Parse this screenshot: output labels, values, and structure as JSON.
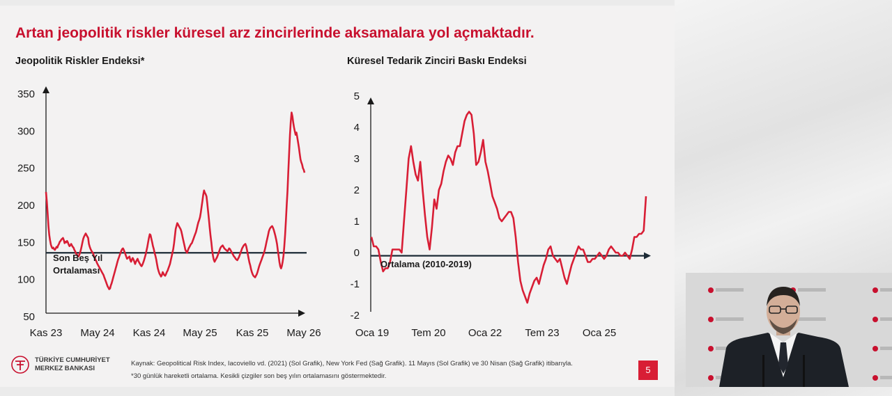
{
  "slide": {
    "title": "Artan jeopolitik riskler küresel arz zincirlerinde aksamalara yol açmaktadır.",
    "page_number": "5",
    "source_line1": "Kaynak: Geopolitical Risk Index, Iacoviello vd. (2021) (Sol Grafik), New York Fed (Sağ Grafik). 11 Mayıs (Sol Grafik) ve 30 Nisan (Sağ Grafik) itibarıyla.",
    "source_line2": "*30 günlük hareketli ortalama. Kesikli çizgiler son beş yılın ortalamasını göstermektedir.",
    "logo_line1": "TÜRKİYE CUMHURİYET",
    "logo_line2": "MERKEZ BANKASI",
    "logo_monogram": "TCMB",
    "accent_color": "#c8102e"
  },
  "chart_data": [
    {
      "type": "line",
      "title": "Jeopolitik Riskler Endeksi*",
      "ylim": [
        50,
        350
      ],
      "yticks": [
        "350",
        "300",
        "250",
        "200",
        "150",
        "100",
        "50"
      ],
      "xticks": [
        "Kas 23",
        "May 24",
        "Kas 24",
        "May 25",
        "Kas 25",
        "May 26"
      ],
      "reference_line": {
        "value": 136,
        "label_line1": "Son Beş Yıl",
        "label_line2": "Ortalaması"
      },
      "line_color": "#d81e35",
      "series": [
        {
          "x_range": [
            "Kas 23",
            "May 26"
          ],
          "values": [
            218,
            205,
            190,
            172,
            160,
            153,
            147,
            144,
            142,
            143,
            141,
            140,
            142,
            144,
            143,
            146,
            148,
            151,
            152,
            154,
            155,
            156,
            153,
            149,
            151,
            150,
            152,
            150,
            147,
            145,
            146,
            148,
            146,
            144,
            143,
            140,
            138,
            135,
            134,
            132,
            131,
            133,
            136,
            140,
            145,
            150,
            155,
            158,
            160,
            162,
            160,
            158,
            156,
            148,
            144,
            141,
            139,
            137,
            136,
            132,
            130,
            127,
            125,
            122,
            120,
            118,
            116,
            114,
            112,
            110,
            108,
            106,
            103,
            100,
            97,
            94,
            91,
            89,
            87,
            88,
            92,
            95,
            99,
            103,
            107,
            111,
            115,
            119,
            123,
            127,
            130,
            133,
            136,
            139,
            141,
            142,
            140,
            137,
            134,
            131,
            128,
            129,
            130,
            131,
            126,
            124,
            127,
            129,
            127,
            124,
            121,
            124,
            126,
            128,
            125,
            123,
            121,
            119,
            118,
            120,
            123,
            126,
            130,
            134,
            139,
            144,
            150,
            156,
            161,
            160,
            155,
            150,
            145,
            141,
            136,
            132,
            127,
            121,
            115,
            111,
            108,
            106,
            104,
            106,
            110,
            108,
            106,
            105,
            107,
            110,
            112,
            115,
            118,
            121,
            126,
            131,
            136,
            141,
            149,
            158,
            168,
            172,
            176,
            174,
            172,
            170,
            168,
            165,
            160,
            155,
            150,
            145,
            140,
            138,
            136,
            139,
            142,
            144,
            146,
            148,
            149,
            152,
            155,
            158,
            161,
            164,
            168,
            173,
            177,
            180,
            184,
            190,
            198,
            206,
            214,
            220,
            217,
            215,
            212,
            203,
            192,
            181,
            170,
            159,
            150,
            140,
            132,
            127,
            124,
            126,
            128,
            130,
            133,
            136,
            139,
            142,
            144,
            145,
            146,
            144,
            142,
            141,
            140,
            139,
            138,
            140,
            142,
            141,
            139,
            137,
            135,
            133,
            131,
            130,
            128,
            127,
            126,
            128,
            130,
            133,
            136,
            139,
            142,
            144,
            146,
            147,
            148,
            145,
            140,
            134,
            128,
            123,
            119,
            114,
            110,
            107,
            105,
            104,
            103,
            105,
            107,
            110,
            114,
            118,
            121,
            124,
            127,
            130,
            133,
            136,
            140,
            145,
            150,
            155,
            160,
            165,
            168,
            170,
            171,
            172,
            170,
            167,
            163,
            159,
            154,
            148,
            140,
            132,
            124,
            118,
            115,
            118,
            124,
            132,
            144,
            160,
            180,
            200,
            220,
            245,
            270,
            295,
            312,
            325,
            320,
            312,
            305,
            300,
            295,
            298,
            292,
            285,
            278,
            270,
            262,
            258,
            255,
            250,
            248,
            244
          ]
        }
      ]
    },
    {
      "type": "line",
      "title": "Küresel Tedarik Zinciri Baskı Endeksi",
      "ylim": [
        -2,
        5
      ],
      "yticks": [
        "5",
        "4",
        "3",
        "2",
        "1",
        "0",
        "-1",
        "-2"
      ],
      "xticks": [
        "Oca 19",
        "Tem 20",
        "Oca 22",
        "Tem 23",
        "Oca 25"
      ],
      "reference_line": {
        "value": -0.1,
        "label": "Ortalama (2010-2019)"
      },
      "line_color": "#d81e35",
      "series": [
        {
          "x_range": [
            "Oca 19",
            "Nis 26"
          ],
          "values": [
            0.5,
            0.2,
            0.2,
            0.1,
            -0.3,
            -0.6,
            -0.5,
            -0.5,
            -0.3,
            0.1,
            0.1,
            0.1,
            0.1,
            0.0,
            1.0,
            2.0,
            3.0,
            3.4,
            2.9,
            2.5,
            2.3,
            2.9,
            2.0,
            1.2,
            0.5,
            0.1,
            0.8,
            1.7,
            1.4,
            2.0,
            2.2,
            2.6,
            2.9,
            3.1,
            3.0,
            2.8,
            3.2,
            3.4,
            3.4,
            3.8,
            4.2,
            4.4,
            4.5,
            4.4,
            3.8,
            2.8,
            2.9,
            3.2,
            3.6,
            2.9,
            2.6,
            2.2,
            1.8,
            1.6,
            1.4,
            1.1,
            1.0,
            1.1,
            1.2,
            1.3,
            1.3,
            1.1,
            0.5,
            -0.3,
            -0.9,
            -1.2,
            -1.4,
            -1.6,
            -1.3,
            -1.1,
            -0.9,
            -0.8,
            -1.0,
            -0.7,
            -0.4,
            -0.2,
            0.1,
            0.2,
            -0.1,
            -0.2,
            -0.3,
            -0.2,
            -0.5,
            -0.8,
            -1.0,
            -0.7,
            -0.4,
            -0.2,
            0.0,
            0.2,
            0.1,
            0.1,
            -0.1,
            -0.3,
            -0.3,
            -0.2,
            -0.2,
            -0.1,
            0.0,
            -0.1,
            -0.2,
            -0.1,
            0.1,
            0.2,
            0.1,
            0.0,
            0.0,
            -0.1,
            -0.1,
            0.0,
            -0.1,
            -0.2,
            0.1,
            0.5,
            0.5,
            0.6,
            0.6,
            0.7,
            1.8
          ]
        }
      ]
    }
  ]
}
